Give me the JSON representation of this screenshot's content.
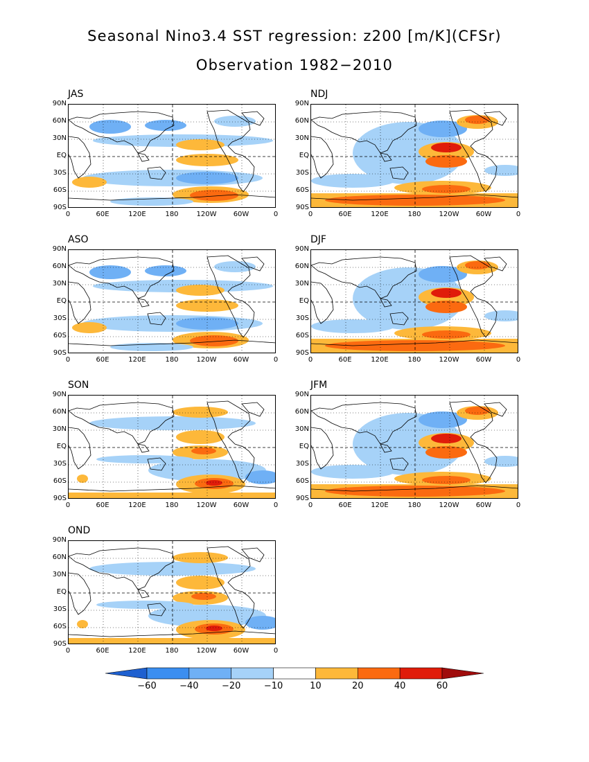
{
  "title": "Seasonal Nino3.4 SST regression: z200 [m/K](CFSr)",
  "subtitle": "Observation 1982−2010",
  "lat_labels": [
    "90N",
    "60N",
    "30N",
    "EQ",
    "30S",
    "60S",
    "90S"
  ],
  "lon_labels": [
    "0",
    "60E",
    "120E",
    "180",
    "120W",
    "60W",
    "0"
  ],
  "panels": [
    {
      "label": "JAS",
      "pattern": "summer"
    },
    {
      "label": "NDJ",
      "pattern": "winter"
    },
    {
      "label": "ASO",
      "pattern": "summer"
    },
    {
      "label": "DJF",
      "pattern": "winter"
    },
    {
      "label": "SON",
      "pattern": "autumn"
    },
    {
      "label": "JFM",
      "pattern": "winter"
    },
    {
      "label": "OND",
      "pattern": "autumn"
    }
  ],
  "colorbar": {
    "levels": [
      "−60",
      "−40",
      "−20",
      "−10",
      "10",
      "20",
      "40",
      "60"
    ],
    "colors": [
      "#1e60d0",
      "#3b8ef0",
      "#6fb0f5",
      "#a6d2f8",
      "#ffffff",
      "#fdb83a",
      "#fb6a10",
      "#e01c0a",
      "#a00c0c"
    ]
  }
}
